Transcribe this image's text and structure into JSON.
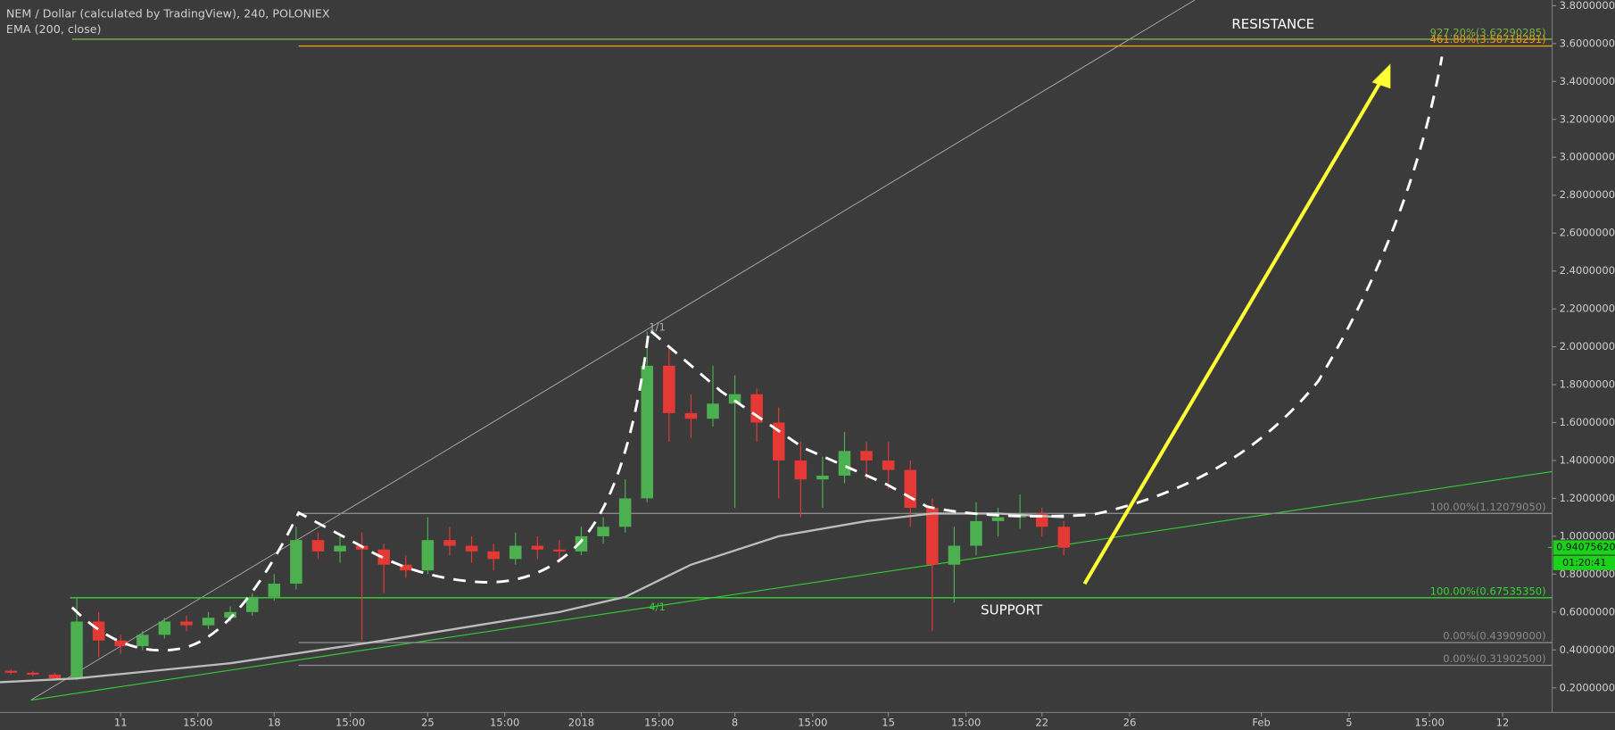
{
  "chart_data": {
    "type": "candlestick",
    "title": "NEM / Dollar (calculated by TradingView), 240, POLONIEX",
    "indicator": "EMA (200, close)",
    "xlim": [
      4.5,
      75.26
    ],
    "ylim": [
      0.07,
      3.83
    ],
    "yticks": [
      {
        "value": 0.2,
        "label": "0.20000000"
      },
      {
        "value": 0.4,
        "label": "0.40000000"
      },
      {
        "value": 0.6,
        "label": "0.60000000"
      },
      {
        "value": 0.8,
        "label": "0.80000000"
      },
      {
        "value": 1.0,
        "label": "1.00000000"
      },
      {
        "value": 1.2,
        "label": "1.20000000"
      },
      {
        "value": 1.4,
        "label": "1.40000000"
      },
      {
        "value": 1.6,
        "label": "1.60000000"
      },
      {
        "value": 1.8,
        "label": "1.80000000"
      },
      {
        "value": 2.0,
        "label": "2.00000000"
      },
      {
        "value": 2.2,
        "label": "2.20000000"
      },
      {
        "value": 2.4,
        "label": "2.40000000"
      },
      {
        "value": 2.6,
        "label": "2.60000000"
      },
      {
        "value": 2.8,
        "label": "2.80000000"
      },
      {
        "value": 3.0,
        "label": "3.00000000"
      },
      {
        "value": 3.2,
        "label": "3.20000000"
      },
      {
        "value": 3.4,
        "label": "3.40000000"
      },
      {
        "value": 3.6,
        "label": "3.60000000"
      },
      {
        "value": 3.8,
        "label": "3.80000000"
      }
    ],
    "xticks": [
      {
        "value": 10,
        "label": "11"
      },
      {
        "value": 13.52,
        "label": "15:00"
      },
      {
        "value": 17,
        "label": "18"
      },
      {
        "value": 20.47,
        "label": "15:00"
      },
      {
        "value": 24,
        "label": "25"
      },
      {
        "value": 27.51,
        "label": "15:00"
      },
      {
        "value": 31,
        "label": "2018"
      },
      {
        "value": 34.55,
        "label": "15:00"
      },
      {
        "value": 38,
        "label": "8"
      },
      {
        "value": 41.55,
        "label": "15:00"
      },
      {
        "value": 45,
        "label": "15"
      },
      {
        "value": 48.54,
        "label": "15:00"
      },
      {
        "value": 52,
        "label": "22"
      },
      {
        "value": 56,
        "label": "26"
      },
      {
        "value": 62,
        "label": "Feb"
      },
      {
        "value": 66,
        "label": "5"
      },
      {
        "value": 69.67,
        "label": "15:00"
      },
      {
        "value": 73,
        "label": "12"
      }
    ],
    "up_color": "#4caf50",
    "down_color": "#e53935",
    "x": [
      5,
      6,
      7,
      8,
      9,
      10,
      11,
      12,
      13,
      14,
      15,
      16,
      17,
      18,
      19,
      20,
      21,
      22,
      23,
      24,
      25,
      26,
      27,
      28,
      29,
      30,
      31,
      32,
      33,
      34,
      35,
      36,
      37,
      38,
      39,
      40,
      41,
      42,
      43,
      44,
      45,
      46,
      47,
      48,
      49,
      50,
      51,
      52,
      53
    ],
    "open": [
      0.29,
      0.28,
      0.27,
      0.25,
      0.55,
      0.45,
      0.42,
      0.48,
      0.55,
      0.53,
      0.57,
      0.6,
      0.68,
      0.75,
      0.98,
      0.92,
      0.95,
      0.93,
      0.85,
      0.82,
      0.98,
      0.95,
      0.92,
      0.88,
      0.95,
      0.93,
      0.92,
      1.0,
      1.05,
      1.2,
      1.9,
      1.65,
      1.62,
      1.7,
      1.75,
      1.6,
      1.4,
      1.3,
      1.32,
      1.45,
      1.4,
      1.35,
      1.15,
      0.85,
      0.95,
      1.08,
      1.1,
      1.12,
      1.05
    ],
    "high": [
      0.3,
      0.29,
      0.28,
      0.68,
      0.6,
      0.48,
      0.5,
      0.57,
      0.58,
      0.6,
      0.63,
      0.7,
      0.8,
      1.05,
      1.02,
      1.0,
      1.02,
      0.96,
      0.9,
      1.1,
      1.05,
      1.0,
      0.96,
      1.02,
      1.0,
      0.98,
      1.05,
      1.1,
      1.3,
      2.08,
      2.0,
      1.75,
      1.9,
      1.85,
      1.78,
      1.68,
      1.5,
      1.42,
      1.55,
      1.5,
      1.5,
      1.4,
      1.2,
      1.05,
      1.18,
      1.15,
      1.22,
      1.15,
      1.08
    ],
    "low": [
      0.27,
      0.26,
      0.24,
      0.24,
      0.36,
      0.38,
      0.4,
      0.46,
      0.5,
      0.51,
      0.55,
      0.58,
      0.66,
      0.72,
      0.88,
      0.86,
      0.45,
      0.7,
      0.78,
      0.8,
      0.9,
      0.86,
      0.82,
      0.85,
      0.88,
      0.86,
      0.9,
      0.96,
      1.02,
      1.18,
      1.5,
      1.52,
      1.58,
      1.15,
      1.5,
      1.2,
      1.1,
      1.15,
      1.28,
      1.3,
      1.25,
      1.05,
      0.5,
      0.65,
      0.9,
      1.0,
      1.04,
      1.0,
      0.9
    ],
    "close": [
      0.28,
      0.27,
      0.25,
      0.55,
      0.45,
      0.42,
      0.48,
      0.55,
      0.53,
      0.57,
      0.6,
      0.68,
      0.75,
      0.98,
      0.92,
      0.95,
      0.93,
      0.85,
      0.82,
      0.98,
      0.95,
      0.92,
      0.88,
      0.95,
      0.93,
      0.92,
      1.0,
      1.05,
      1.2,
      1.9,
      1.65,
      1.62,
      1.7,
      1.75,
      1.6,
      1.4,
      1.3,
      1.32,
      1.45,
      1.4,
      1.35,
      1.15,
      0.85,
      0.95,
      1.08,
      1.1,
      1.12,
      1.05,
      0.94
    ],
    "ema": {
      "color": "#bdbdbd",
      "x": [
        4.5,
        8,
        15,
        22,
        30,
        33,
        36,
        40,
        44,
        47,
        50,
        53
      ],
      "values": [
        0.23,
        0.25,
        0.33,
        0.45,
        0.6,
        0.68,
        0.85,
        1.0,
        1.08,
        1.12,
        1.12,
        1.1
      ]
    },
    "levels": [
      {
        "value": 3.62290285,
        "label": "927.20%(3.62290285)",
        "color": "#7cb342"
      },
      {
        "value": 3.58718291,
        "label": "461.80%(3.58718291)",
        "color": "#f39c12"
      },
      {
        "value": 1.1207905,
        "label": "100.00%(1.12079050)",
        "color": "#8a8a8a"
      },
      {
        "value": 0.6753535,
        "label": "100.00%(0.67535350)",
        "color": "#33d633"
      },
      {
        "value": 0.43909,
        "label": "0.00%(0.43909000)",
        "color": "#8a8a8a"
      },
      {
        "value": 0.319025,
        "label": "0.00%(0.31902500)",
        "color": "#8a8a8a"
      }
    ],
    "last_price": {
      "value": 0.9407562,
      "label": "0.94075620"
    },
    "countdown": "01:20:41",
    "annotations": {
      "resistance": "RESISTANCE",
      "support": "SUPPORT",
      "fan_top": "1/1",
      "fan_bottom": "4/1"
    }
  }
}
